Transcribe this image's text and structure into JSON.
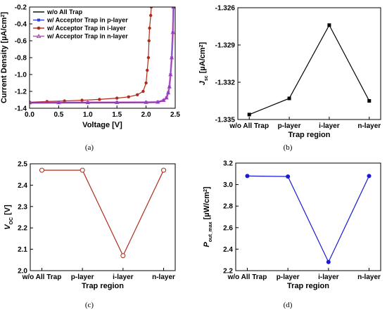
{
  "chart_data": [
    {
      "type": "line",
      "caption": "(a)",
      "xlabel": "Voltage [V]",
      "ylabel": "Current Density [µA/cm²]",
      "ylabel_parts": [
        "Current Density [µA/cm",
        "2",
        "]"
      ],
      "xlim": [
        0.0,
        2.5
      ],
      "ylim": [
        -1.4,
        -0.2
      ],
      "xticks": [
        "0.0",
        "0.5",
        "1.0",
        "1.5",
        "2.0",
        "2.5"
      ],
      "yticks": [
        "-1.4",
        "-1.2",
        "-1.0",
        "-0.8",
        "-0.6",
        "-0.4",
        "-0.2"
      ],
      "legend_position": "top-left",
      "series": [
        {
          "name": "w/o All Trap",
          "color": "#000000",
          "marker": "none",
          "x": [
            0,
            0.5,
            1.0,
            1.5,
            2.0,
            2.2,
            2.3,
            2.35,
            2.38,
            2.4,
            2.42,
            2.44,
            2.46,
            2.47
          ],
          "y": [
            -1.338,
            -1.337,
            -1.336,
            -1.335,
            -1.333,
            -1.33,
            -1.31,
            -1.28,
            -1.22,
            -1.15,
            -1.0,
            -0.8,
            -0.5,
            -0.2
          ]
        },
        {
          "name": "w/ Acceptor Trap in p-layer",
          "color": "#2d3fd6",
          "marker": "square",
          "x": [
            0,
            0.5,
            1.0,
            1.5,
            2.0,
            2.2,
            2.3,
            2.35,
            2.38,
            2.4,
            2.42,
            2.44,
            2.46,
            2.47
          ],
          "y": [
            -1.333,
            -1.332,
            -1.331,
            -1.33,
            -1.329,
            -1.326,
            -1.305,
            -1.275,
            -1.215,
            -1.145,
            -1.0,
            -0.8,
            -0.5,
            -0.2
          ]
        },
        {
          "name": "w/ Acceptor Trap in i-layer",
          "color": "#b02a1a",
          "marker": "circle",
          "x": [
            0,
            0.3,
            0.6,
            0.9,
            1.2,
            1.5,
            1.7,
            1.85,
            1.95,
            2.0,
            2.02,
            2.04,
            2.05,
            2.06,
            2.08,
            2.09
          ],
          "y": [
            -1.328,
            -1.32,
            -1.313,
            -1.305,
            -1.295,
            -1.28,
            -1.265,
            -1.24,
            -1.2,
            -1.1,
            -0.95,
            -0.8,
            -0.6,
            -0.45,
            -0.3,
            -0.2
          ]
        },
        {
          "name": "w/ Acceptor Trap in n-layer",
          "color": "#c040c0",
          "marker": "triangle",
          "x": [
            0,
            0.5,
            1.0,
            1.5,
            2.0,
            2.2,
            2.3,
            2.35,
            2.38,
            2.4,
            2.42,
            2.44,
            2.46,
            2.47
          ],
          "y": [
            -1.333,
            -1.332,
            -1.331,
            -1.33,
            -1.329,
            -1.326,
            -1.305,
            -1.275,
            -1.215,
            -1.145,
            -1.0,
            -0.8,
            -0.5,
            -0.2
          ]
        }
      ]
    },
    {
      "type": "line",
      "caption": "(b)",
      "xlabel": "Trap region",
      "ylabel_parts": [
        "J",
        "sc",
        " [µA/cm",
        "2",
        "]"
      ],
      "categories": [
        "w/o All Trap",
        "p-layer",
        "i-layer",
        "n-layer"
      ],
      "values": [
        -1.3346,
        -1.3333,
        -1.3274,
        -1.3335
      ],
      "ylim": [
        -1.335,
        -1.326
      ],
      "yticks": [
        "-1.335",
        "-1.332",
        "-1.329",
        "-1.326"
      ],
      "color": "#000000",
      "marker": "filled-square"
    },
    {
      "type": "line",
      "caption": "(c)",
      "xlabel": "Trap region",
      "ylabel_parts": [
        "V",
        "OC",
        " [V]"
      ],
      "categories": [
        "w/o All Trap",
        "p-layer",
        "i-layer",
        "n-layer"
      ],
      "values": [
        2.47,
        2.47,
        2.07,
        2.47
      ],
      "ylim": [
        2.0,
        2.5
      ],
      "yticks": [
        "2.0",
        "2.1",
        "2.2",
        "2.3",
        "2.4",
        "2.5"
      ],
      "color": "#b02a1a",
      "marker": "open-circle"
    },
    {
      "type": "line",
      "caption": "(d)",
      "xlabel": "Trap region",
      "ylabel_parts": [
        "P",
        "out_max",
        " [µW/cm",
        "2",
        "]"
      ],
      "categories": [
        "w/o All Trap",
        "p-layer",
        "i-layer",
        "n-layer"
      ],
      "values": [
        3.08,
        3.075,
        2.28,
        3.08
      ],
      "ylim": [
        2.2,
        3.2
      ],
      "yticks": [
        "2.2",
        "2.4",
        "2.6",
        "2.8",
        "3.0",
        "3.2"
      ],
      "color": "#1a1ad6",
      "marker": "filled-circle"
    }
  ]
}
